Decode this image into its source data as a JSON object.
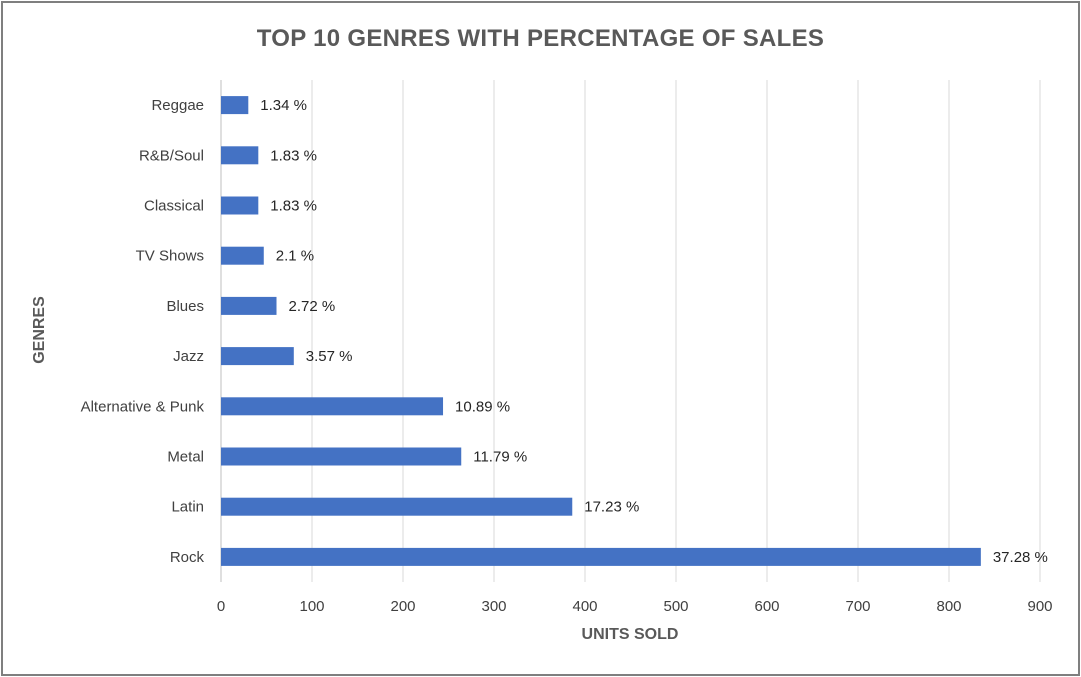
{
  "chart_data": {
    "type": "bar",
    "orientation": "horizontal",
    "title": "TOP 10 GENRES WITH PERCENTAGE OF SALES",
    "xlabel": "UNITS SOLD",
    "ylabel": "GENRES",
    "categories": [
      "Reggae",
      "R&B/Soul",
      "Classical",
      "TV Shows",
      "Blues",
      "Jazz",
      "Alternative & Punk",
      "Metal",
      "Latin",
      "Rock"
    ],
    "values": [
      30,
      41,
      41,
      47,
      61,
      80,
      244,
      264,
      386,
      835
    ],
    "data_labels": [
      "1.34 %",
      "1.83 %",
      "1.83 %",
      "2.1 %",
      "2.72 %",
      "3.57 %",
      "10.89 %",
      "11.79 %",
      "17.23 %",
      "37.28 %"
    ],
    "xlim": [
      0,
      900
    ],
    "x_ticks": [
      0,
      100,
      200,
      300,
      400,
      500,
      600,
      700,
      800,
      900
    ],
    "grid": true,
    "legend": "none",
    "bar_color": "#4472c4"
  }
}
